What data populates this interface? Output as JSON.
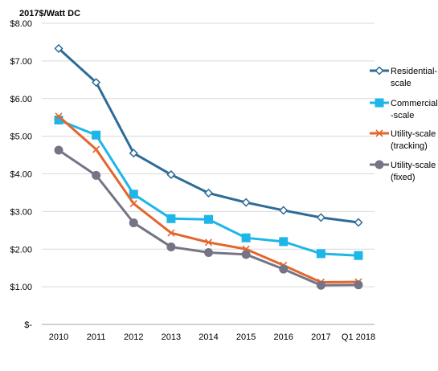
{
  "chart_data": {
    "type": "line",
    "title": "2017$/Watt DC",
    "xlabel": "",
    "ylabel": "",
    "categories": [
      "2010",
      "2011",
      "2012",
      "2013",
      "2014",
      "2015",
      "2016",
      "2017",
      "Q1 2018"
    ],
    "ylim": [
      0,
      8
    ],
    "yticks": [
      0,
      1,
      2,
      3,
      4,
      5,
      6,
      7,
      8
    ],
    "ytick_labels": [
      "$-",
      "$1.00",
      "$2.00",
      "$3.00",
      "$4.00",
      "$5.00",
      "$6.00",
      "$7.00",
      "$8.00"
    ],
    "grid": "horizontal",
    "legend_position": "right",
    "series": [
      {
        "name_lines": [
          "Residential-",
          "scale"
        ],
        "color": "#2e6b96",
        "marker": "diamond",
        "values": [
          7.33,
          6.43,
          4.55,
          3.98,
          3.49,
          3.24,
          3.03,
          2.84,
          2.71
        ]
      },
      {
        "name_lines": [
          "Commercial",
          "-scale"
        ],
        "color": "#1db6e8",
        "marker": "square",
        "values": [
          5.43,
          5.03,
          3.46,
          2.81,
          2.79,
          2.3,
          2.2,
          1.88,
          1.83
        ]
      },
      {
        "name_lines": [
          "Utility-scale",
          "(tracking)"
        ],
        "color": "#e2662e",
        "marker": "x",
        "values": [
          5.53,
          4.65,
          3.21,
          2.43,
          2.18,
          2.0,
          1.57,
          1.12,
          1.13
        ]
      },
      {
        "name_lines": [
          "Utility-scale",
          "(fixed)"
        ],
        "color": "#757486",
        "marker": "circle",
        "values": [
          4.63,
          3.96,
          2.7,
          2.06,
          1.91,
          1.86,
          1.47,
          1.04,
          1.05
        ]
      }
    ]
  }
}
